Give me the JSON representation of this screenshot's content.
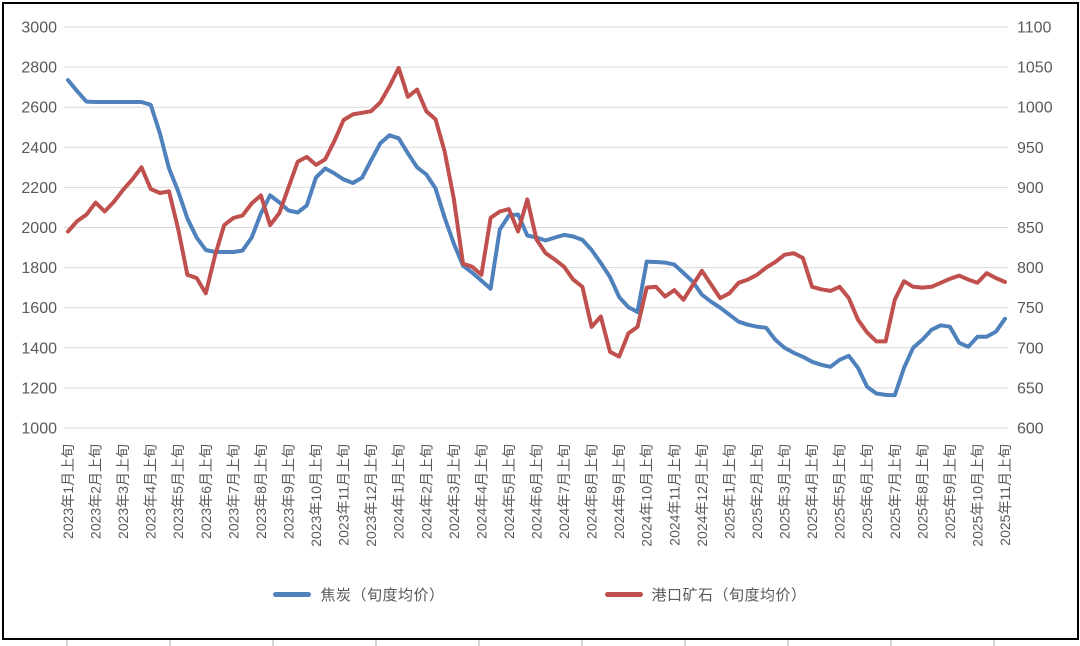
{
  "legend": {
    "items": [
      {
        "label": "焦炭（旬度均价）",
        "color": "#4F81BD"
      },
      {
        "label": "港口矿石（旬度均价）",
        "color": "#C0504D"
      }
    ]
  },
  "chart_data": {
    "type": "line",
    "title": "",
    "grid": true,
    "gridline_color": "#D9D9D9",
    "text_color": "#595959",
    "frame_color": "#000000",
    "x_axis": {
      "label_every_n_points": 3,
      "labels": [
        "2023年1月上旬",
        "2023年2月上旬",
        "2023年3月上旬",
        "2023年4月上旬",
        "2023年5月上旬",
        "2023年6月上旬",
        "2023年7月上旬",
        "2023年8月上旬",
        "2023年9月上旬",
        "2023年10月上旬",
        "2023年11月上旬",
        "2023年12月上旬",
        "2024年1月上旬",
        "2024年2月上旬",
        "2024年3月上旬",
        "2024年4月上旬",
        "2024年5月上旬",
        "2024年6月上旬",
        "2024年7月上旬",
        "2024年8月上旬",
        "2024年9月上旬",
        "2024年10月上旬",
        "2024年11月上旬",
        "2024年12月上旬",
        "2025年1月上旬",
        "2025年2月上旬",
        "2025年3月上旬",
        "2025年4月上旬",
        "2025年5月上旬",
        "2025年6月上旬",
        "2025年7月上旬",
        "2025年8月上旬",
        "2025年9月上旬",
        "2025年10月上旬",
        "2025年11月上旬"
      ]
    },
    "y_axis_left": {
      "min": 1000,
      "max": 3000,
      "step": 200,
      "ticks": [
        "3000",
        "2800",
        "2600",
        "2400",
        "2200",
        "2000",
        "1800",
        "1600",
        "1400",
        "1200",
        "1000"
      ]
    },
    "y_axis_right": {
      "min": 600,
      "max": 1100,
      "step": 50,
      "ticks": [
        "1100",
        "1050",
        "1000",
        "950",
        "900",
        "850",
        "800",
        "750",
        "700",
        "650",
        "600"
      ]
    },
    "series": [
      {
        "name": "焦炭（旬度均价）",
        "axis": "left",
        "color": "#4F81BD",
        "values": [
          2735,
          2680,
          2628,
          2626,
          2626,
          2626,
          2626,
          2626,
          2626,
          2612,
          2470,
          2295,
          2180,
          2045,
          1950,
          1888,
          1878,
          1878,
          1878,
          1885,
          1950,
          2070,
          2160,
          2125,
          2085,
          2075,
          2110,
          2250,
          2295,
          2270,
          2240,
          2222,
          2248,
          2335,
          2420,
          2460,
          2445,
          2370,
          2300,
          2265,
          2195,
          2050,
          1920,
          1810,
          1775,
          1735,
          1695,
          1990,
          2060,
          2065,
          1960,
          1950,
          1935,
          1950,
          1963,
          1955,
          1938,
          1888,
          1823,
          1753,
          1653,
          1603,
          1578,
          1830,
          1828,
          1825,
          1815,
          1773,
          1730,
          1665,
          1630,
          1600,
          1565,
          1530,
          1515,
          1505,
          1500,
          1440,
          1400,
          1375,
          1355,
          1330,
          1315,
          1305,
          1340,
          1360,
          1300,
          1205,
          1172,
          1165,
          1163,
          1300,
          1400,
          1440,
          1490,
          1512,
          1505,
          1425,
          1405,
          1455,
          1455,
          1480,
          1545
        ]
      },
      {
        "name": "港口矿石（旬度均价）",
        "axis": "right",
        "color": "#C0504D",
        "values": [
          845,
          858,
          866,
          881,
          870,
          882,
          897,
          910,
          925,
          898,
          893,
          895,
          848,
          791,
          787,
          768,
          815,
          853,
          862,
          865,
          880,
          890,
          853,
          868,
          900,
          932,
          938,
          928,
          935,
          958,
          984,
          991,
          993,
          995,
          1006,
          1026,
          1049,
          1013,
          1022,
          995,
          985,
          945,
          886,
          805,
          801,
          791,
          862,
          870,
          873,
          845,
          885,
          835,
          818,
          810,
          801,
          785,
          776,
          726,
          739,
          695,
          689,
          718,
          726,
          775,
          776,
          764,
          772,
          760,
          778,
          796,
          779,
          762,
          768,
          781,
          785,
          791,
          800,
          807,
          816,
          818,
          812,
          776,
          773,
          771,
          776,
          762,
          735,
          719,
          708,
          708,
          760,
          783,
          776,
          775,
          776,
          781,
          786,
          790,
          785,
          781,
          793,
          787,
          782
        ]
      }
    ]
  }
}
